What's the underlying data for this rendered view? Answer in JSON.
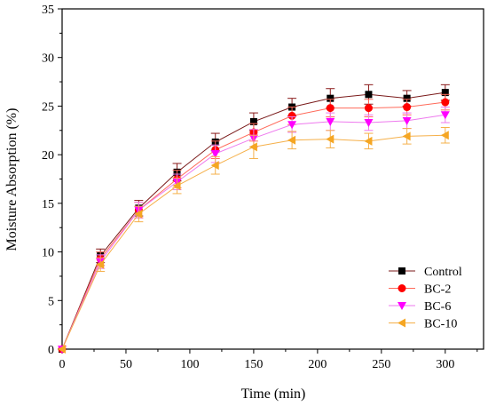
{
  "chart_data": {
    "type": "line",
    "x": [
      0,
      30,
      60,
      90,
      120,
      150,
      180,
      210,
      240,
      270,
      300
    ],
    "series": [
      {
        "name": "Control",
        "color": "#000000",
        "line_color": "#7a1a1a",
        "error_color": "#8a1a1a",
        "marker": "square",
        "values": [
          0,
          9.6,
          14.5,
          18.2,
          21.3,
          23.4,
          24.9,
          25.8,
          26.2,
          25.8,
          26.4
        ],
        "errors": [
          0,
          0.7,
          0.8,
          0.9,
          0.9,
          0.9,
          0.9,
          1.0,
          1.0,
          0.8,
          0.8
        ]
      },
      {
        "name": "BC-2",
        "color": "#ff0000",
        "line_color": "#ff6a5a",
        "error_color": "#ff6a5a",
        "marker": "circle",
        "values": [
          0,
          9.3,
          14.3,
          17.5,
          20.5,
          22.3,
          24.0,
          24.8,
          24.8,
          24.9,
          25.4
        ],
        "errors": [
          0,
          0.7,
          0.8,
          0.9,
          0.9,
          0.9,
          0.9,
          0.9,
          0.9,
          0.8,
          0.8
        ]
      },
      {
        "name": "BC-6",
        "color": "#ff00ff",
        "line_color": "#ee7aee",
        "error_color": "#ee7aee",
        "marker": "triangle-down",
        "values": [
          0,
          9.0,
          14.3,
          17.2,
          20.1,
          21.7,
          23.1,
          23.4,
          23.3,
          23.5,
          24.1
        ],
        "errors": [
          0,
          0.7,
          0.8,
          0.8,
          0.9,
          0.9,
          0.8,
          0.9,
          0.8,
          0.8,
          0.8
        ]
      },
      {
        "name": "BC-10",
        "color": "#f5a623",
        "line_color": "#f5b04a",
        "error_color": "#f5b04a",
        "marker": "triangle-left",
        "values": [
          0,
          8.7,
          13.9,
          16.8,
          18.9,
          20.8,
          21.5,
          21.6,
          21.4,
          21.9,
          22.0
        ],
        "errors": [
          0,
          0.7,
          0.8,
          0.8,
          0.9,
          1.2,
          0.9,
          0.9,
          0.8,
          0.8,
          0.8
        ]
      }
    ],
    "title": "",
    "xlabel": "Time (min)",
    "ylabel": "Moisture Absorption (%)",
    "xlim": [
      0,
      330
    ],
    "ylim": [
      0,
      35
    ],
    "xticks": [
      0,
      50,
      100,
      150,
      200,
      250,
      300
    ],
    "yticks": [
      0,
      5,
      10,
      15,
      20,
      25,
      30,
      35
    ],
    "grid": false,
    "legend_position": "bottom-right"
  }
}
